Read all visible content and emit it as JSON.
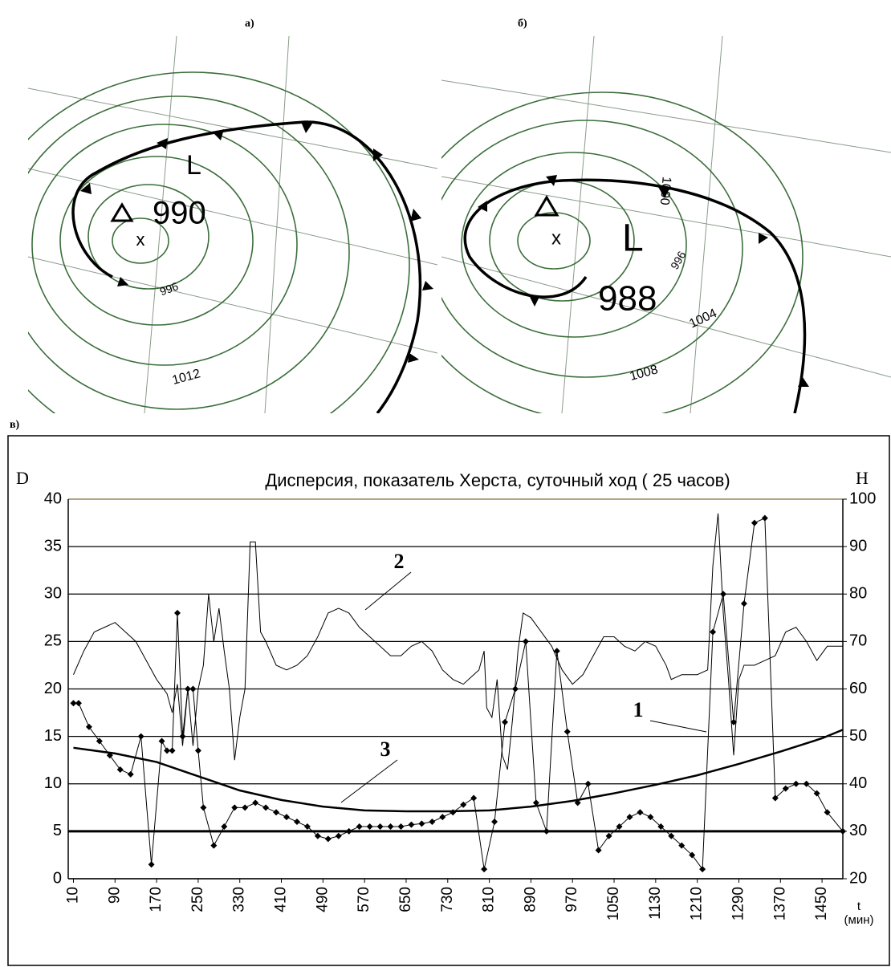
{
  "panels": {
    "a": "а)",
    "b": "б)",
    "c": "в)"
  },
  "maps": [
    {
      "labels": [
        "L",
        "990",
        "996",
        "1012"
      ]
    },
    {
      "labels": [
        "L",
        "988",
        "996",
        "1000",
        "1004",
        "1008"
      ]
    }
  ],
  "chart_data": {
    "type": "line",
    "title": "Дисперсия, показатель Херста, суточный ход ( 25 часов)",
    "ylabel": "D",
    "y2label": "H",
    "xlabel": "t",
    "xunit": "(мин)",
    "xlim": [
      0,
      1490
    ],
    "xticks": [
      10,
      90,
      170,
      250,
      330,
      410,
      490,
      570,
      650,
      730,
      810,
      890,
      970,
      1050,
      1130,
      1210,
      1290,
      1370,
      1450
    ],
    "ylim": [
      0,
      40
    ],
    "yticks": [
      0,
      5,
      10,
      15,
      20,
      25,
      30,
      35,
      40
    ],
    "y2lim": [
      20,
      100
    ],
    "y2ticks": [
      20,
      30,
      40,
      50,
      60,
      70,
      80,
      90,
      100
    ],
    "grid": true,
    "hline": 5,
    "series": [
      {
        "name": "1",
        "color": "#000000",
        "width": 2.5,
        "x": [
          10,
          90,
          170,
          250,
          330,
          410,
          490,
          570,
          650,
          730,
          810,
          890,
          970,
          1050,
          1130,
          1210,
          1290,
          1370,
          1450,
          1490
        ],
        "values": [
          13.8,
          13.2,
          12.3,
          10.8,
          9.3,
          8.3,
          7.6,
          7.2,
          7.1,
          7.1,
          7.2,
          7.6,
          8.2,
          9.0,
          9.9,
          10.9,
          12.1,
          13.4,
          14.8,
          15.7
        ]
      },
      {
        "name": "2",
        "color": "#000000",
        "width": 1,
        "x": [
          10,
          30,
          50,
          70,
          90,
          110,
          130,
          150,
          170,
          190,
          200,
          210,
          220,
          230,
          240,
          250,
          260,
          270,
          280,
          290,
          300,
          310,
          320,
          330,
          340,
          350,
          360,
          370,
          380,
          400,
          420,
          440,
          460,
          480,
          500,
          520,
          540,
          560,
          580,
          600,
          620,
          640,
          660,
          680,
          700,
          720,
          740,
          760,
          780,
          790,
          800,
          805,
          815,
          825,
          835,
          845,
          855,
          865,
          875,
          890,
          910,
          930,
          950,
          970,
          990,
          1010,
          1030,
          1050,
          1070,
          1090,
          1110,
          1130,
          1150,
          1160,
          1180,
          1210,
          1230,
          1240,
          1250,
          1260,
          1270,
          1280,
          1290,
          1300,
          1320,
          1340,
          1360,
          1380,
          1400,
          1420,
          1440,
          1460,
          1490
        ],
        "values": [
          21.5,
          24,
          26,
          26.5,
          27,
          26,
          25,
          23,
          21,
          19.5,
          17.5,
          20.5,
          14,
          20,
          14,
          20,
          22.5,
          30,
          25,
          28.5,
          24,
          20,
          12.5,
          17,
          20,
          35.5,
          35.5,
          26,
          25,
          22.5,
          22,
          22.5,
          23.5,
          25.5,
          28,
          28.5,
          28,
          26.5,
          25.5,
          24.5,
          23.5,
          23.5,
          24.5,
          25,
          24,
          22,
          21,
          20.5,
          21.5,
          22,
          24,
          18,
          17,
          21,
          13,
          11.5,
          17,
          24,
          28,
          27.5,
          26,
          24.5,
          22,
          20.5,
          21.5,
          23.5,
          25.5,
          25.5,
          24.5,
          24,
          25,
          24.5,
          22.5,
          21,
          21.5,
          21.5,
          22,
          33,
          38.5,
          28,
          21,
          13,
          21,
          22.5,
          22.5,
          23,
          23.5,
          26,
          26.5,
          25,
          23,
          24.5,
          24.5
        ]
      },
      {
        "name": "3",
        "color": "#000000",
        "width": 1,
        "marker": "diamond",
        "x": [
          10,
          20,
          40,
          60,
          80,
          100,
          120,
          140,
          160,
          180,
          190,
          200,
          210,
          220,
          230,
          240,
          250,
          260,
          280,
          300,
          320,
          340,
          360,
          380,
          400,
          420,
          440,
          460,
          480,
          500,
          520,
          540,
          560,
          580,
          600,
          620,
          640,
          660,
          680,
          700,
          720,
          740,
          760,
          780,
          800,
          820,
          840,
          860,
          880,
          900,
          920,
          940,
          960,
          980,
          1000,
          1020,
          1040,
          1060,
          1080,
          1100,
          1120,
          1140,
          1160,
          1180,
          1200,
          1220,
          1240,
          1260,
          1280,
          1300,
          1320,
          1340,
          1360,
          1380,
          1400,
          1420,
          1440,
          1460,
          1490
        ],
        "values": [
          18.5,
          18.5,
          16,
          14.5,
          13,
          11.5,
          11,
          15,
          1.5,
          14.5,
          13.5,
          13.5,
          28,
          15,
          20,
          20,
          13.5,
          7.5,
          3.5,
          5.5,
          7.5,
          7.5,
          8,
          7.5,
          7,
          6.5,
          6,
          5.5,
          4.5,
          4.2,
          4.5,
          5,
          5.5,
          5.5,
          5.5,
          5.5,
          5.5,
          5.7,
          5.8,
          6,
          6.5,
          7,
          7.8,
          8.5,
          1,
          6,
          16.5,
          20,
          25,
          8,
          5,
          24,
          15.5,
          8,
          10,
          3,
          4.5,
          5.5,
          6.5,
          7,
          6.5,
          5.5,
          4.5,
          3.5,
          2.5,
          1,
          26,
          30,
          16.5,
          29,
          37.5,
          38,
          8.5,
          9.5,
          10,
          10,
          9,
          7,
          5
        ]
      }
    ]
  }
}
